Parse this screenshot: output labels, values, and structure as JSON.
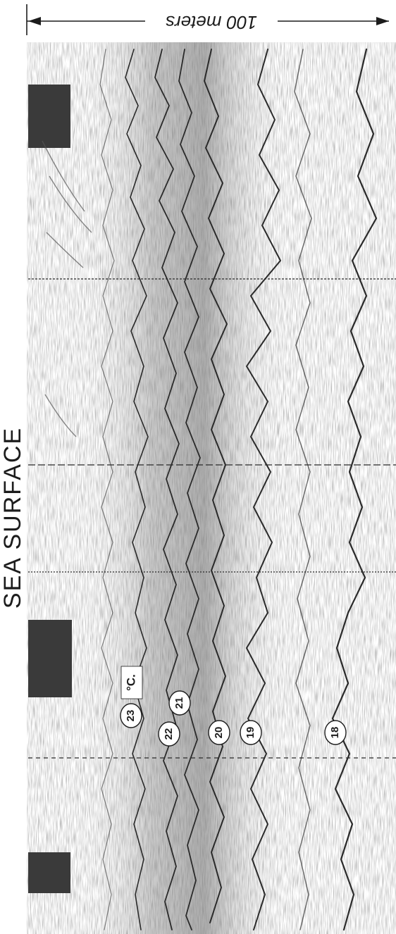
{
  "figure": {
    "scale_label": "100 meters",
    "surface_label": "SEA SURFACE",
    "unit_label": "°C.",
    "isotherm_labels": [
      "23",
      "22",
      "21",
      "20",
      "19",
      "18"
    ]
  },
  "colors": {
    "ink": "#1c1c1c",
    "trace": "#2a2a2a",
    "shading": "#5a5a5a",
    "paper": "#ffffff"
  }
}
